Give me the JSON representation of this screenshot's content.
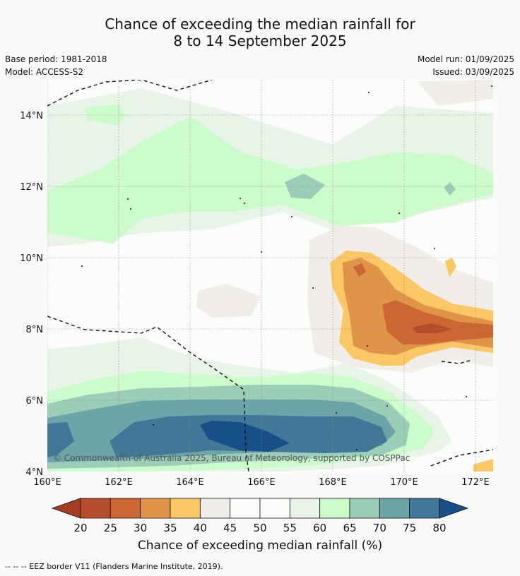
{
  "title": {
    "line1": "Chance of exceeding the median rainfall for",
    "line2": "8 to 14 September 2025"
  },
  "meta": {
    "base_period": "Base period: 1981-2018",
    "model": "Model: ACCESS-S2",
    "model_run": "Model run: 01/09/2025",
    "issued": "Issued: 03/09/2025"
  },
  "map": {
    "lat_labels": [
      "14°N",
      "12°N",
      "10°N",
      "8°N",
      "6°N",
      "4°N"
    ],
    "lon_labels": [
      "160°E",
      "162°E",
      "164°E",
      "166°E",
      "168°E",
      "170°E",
      "172°E"
    ],
    "copyright": "© Commonwealth of Australia 2025, Bureau of Meteorology, supported by COSPPac"
  },
  "colorbar": {
    "ticks": [
      "20",
      "25",
      "30",
      "35",
      "40",
      "45",
      "50",
      "55",
      "60",
      "65",
      "70",
      "75",
      "80"
    ],
    "colors": [
      "#a63c22",
      "#b64d2a",
      "#cc6633",
      "#e09448",
      "#fcc866",
      "#f1ede8",
      "#fbfdfb",
      "#fbfdfb",
      "#e8f4e8",
      "#ccfccc",
      "#9bcdb8",
      "#6ca4a8",
      "#427897",
      "#174f88"
    ],
    "label": "Chance of exceeding median rainfall (%)"
  },
  "footnote": "-- -- -- EEZ border V11 (Flanders Marine Institute, 2019)."
}
